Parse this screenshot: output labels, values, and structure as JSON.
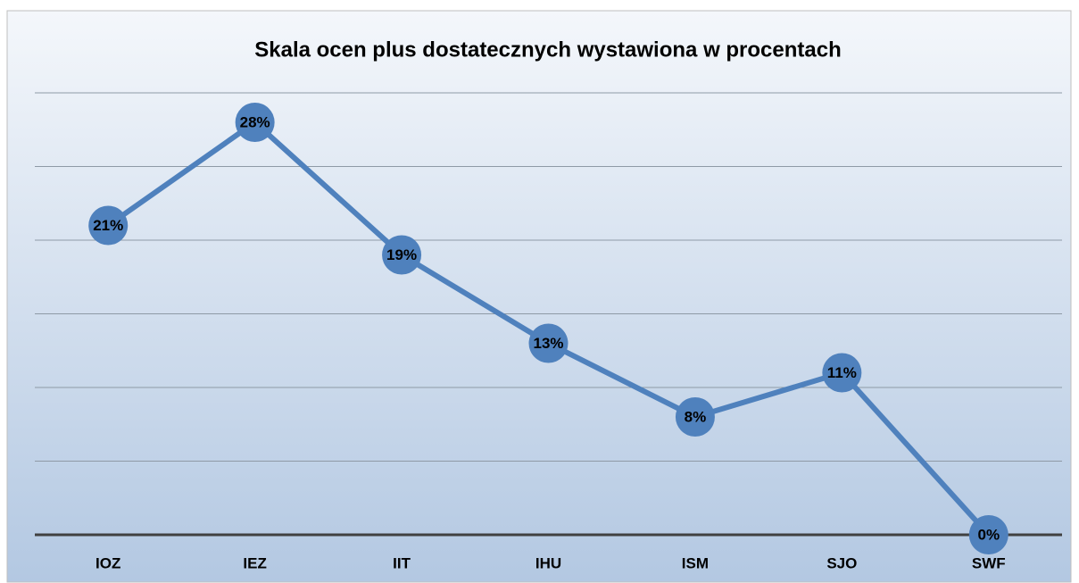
{
  "chart_data": {
    "type": "line",
    "title": "Skala ocen plus dostatecznych wystawiona w procentach",
    "categories": [
      "IOZ",
      "IEZ",
      "IIT",
      "IHU",
      "ISM",
      "SJO",
      "SWF"
    ],
    "values": [
      21,
      28,
      19,
      13,
      8,
      11,
      0
    ],
    "value_labels": [
      "21%",
      "28%",
      "19%",
      "13%",
      "8%",
      "11%",
      "0%"
    ],
    "color": "#4f81bd",
    "ylim": [
      0,
      30
    ],
    "yticks": [
      0,
      5,
      10,
      15,
      20,
      25,
      30
    ],
    "grid": true
  }
}
